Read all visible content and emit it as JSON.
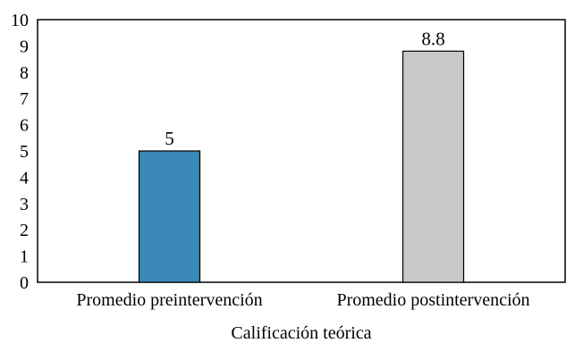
{
  "chart_data": {
    "type": "bar",
    "title": "",
    "xlabel": "Calificación teórica",
    "ylabel": "",
    "ylim": [
      0,
      10
    ],
    "yticks": [
      0,
      1,
      2,
      3,
      4,
      5,
      6,
      7,
      8,
      9,
      10
    ],
    "grid": false,
    "categories": [
      "Promedio preintervención",
      "Promedio postintervención"
    ],
    "values": [
      5,
      8.8
    ],
    "data_labels": [
      "5",
      "8.8"
    ],
    "bar_colors": [
      "#3a89b8",
      "#c8c8c8"
    ],
    "bar_edge_color": "#000000"
  }
}
